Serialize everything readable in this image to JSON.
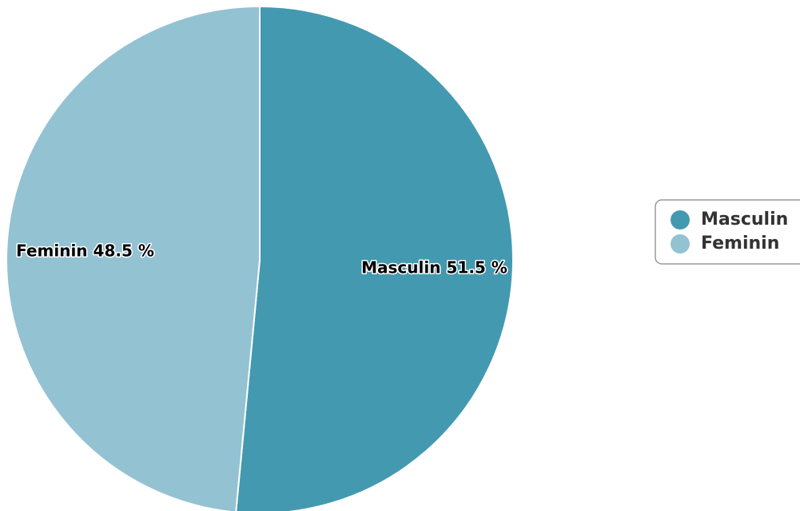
{
  "chart_data": {
    "type": "pie",
    "categories": [
      "Masculin",
      "Feminin"
    ],
    "values": [
      51.5,
      48.5
    ],
    "value_labels": [
      "51.5 %",
      "48.5 %"
    ],
    "colors": [
      "#4399b0",
      "#93c2d3"
    ],
    "legend": "right"
  }
}
